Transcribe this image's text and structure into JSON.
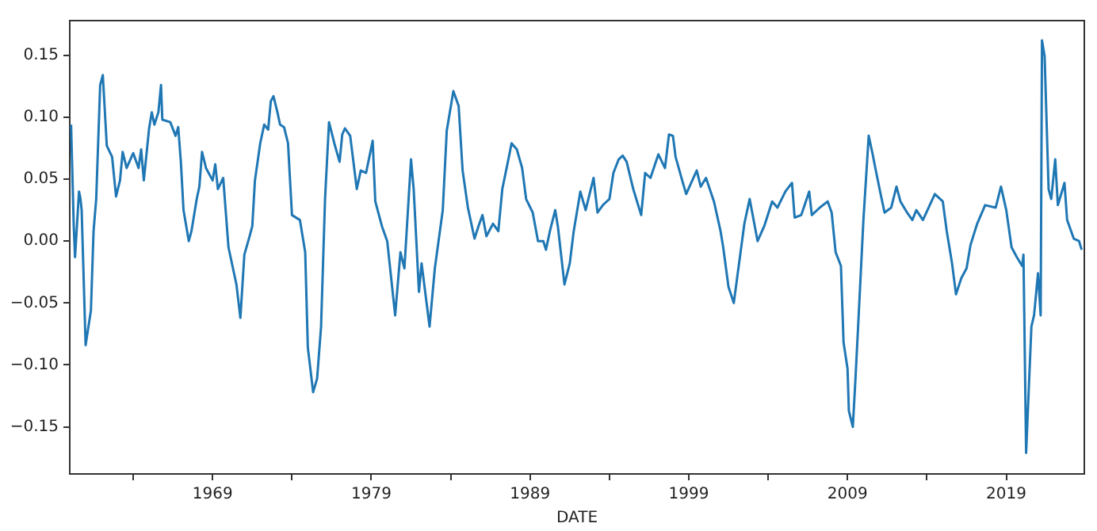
{
  "chart_data": {
    "type": "line",
    "xlabel": "DATE",
    "xlim": [
      "1960-01",
      "2023-12"
    ],
    "xticks": [
      {
        "value": "1964",
        "label": null
      },
      "1969",
      {
        "value": "1974",
        "label": null
      },
      "1979",
      {
        "value": "1984",
        "label": null
      },
      "1989",
      {
        "value": "1994",
        "label": null
      },
      "1999",
      {
        "value": "2004",
        "label": null
      },
      "2009",
      {
        "value": "2014",
        "label": null
      },
      "2019"
    ],
    "ylim": [
      -0.188,
      0.178
    ],
    "yticks": [
      {
        "value": -0.15,
        "label": "−0.15"
      },
      {
        "value": -0.1,
        "label": "−0.10"
      },
      {
        "value": -0.05,
        "label": "−0.05"
      },
      {
        "value": 0,
        "label": "0.00"
      },
      {
        "value": 0.05,
        "label": "0.05"
      },
      {
        "value": 0.1,
        "label": "0.10"
      },
      {
        "value": 0.15,
        "label": "0.15"
      }
    ],
    "grid": false,
    "legend": false,
    "marker": "none",
    "line_style": "solid",
    "x": [
      "1960-02",
      "1960-04",
      "1960-05",
      "1960-08",
      "1960-09",
      "1960-10",
      "1961-01",
      "1961-05",
      "1961-07",
      "1961-09",
      "1961-12",
      "1962-02",
      "1962-05",
      "1962-09",
      "1962-12",
      "1963-03",
      "1963-05",
      "1963-08",
      "1964-01",
      "1964-05",
      "1964-07",
      "1964-09",
      "1965-01",
      "1965-03",
      "1965-05",
      "1965-08",
      "1965-10",
      "1965-11",
      "1966-05",
      "1966-09",
      "1966-11",
      "1967-01",
      "1967-03",
      "1967-07",
      "1967-09",
      "1968-01",
      "1968-03",
      "1968-05",
      "1968-08",
      "1969-01",
      "1969-03",
      "1969-05",
      "1969-09",
      "1970-01",
      "1970-04",
      "1970-07",
      "1970-10",
      "1971-01",
      "1971-05",
      "1971-07",
      "1971-09",
      "1972-01",
      "1972-04",
      "1972-07",
      "1972-09",
      "1972-11",
      "1973-02",
      "1973-04",
      "1973-07",
      "1973-10",
      "1974-01",
      "1974-07",
      "1974-11",
      "1975-01",
      "1975-05",
      "1975-08",
      "1975-11",
      "1976-02",
      "1976-05",
      "1976-09",
      "1977-01",
      "1977-03",
      "1977-05",
      "1977-09",
      "1978-02",
      "1978-05",
      "1978-09",
      "1979-02",
      "1979-04",
      "1979-09",
      "1980-01",
      "1980-07",
      "1980-11",
      "1981-02",
      "1981-07",
      "1981-09",
      "1982-01",
      "1982-03",
      "1982-09",
      "1983-01",
      "1983-07",
      "1983-10",
      "1984-03",
      "1984-07",
      "1984-10",
      "1985-02",
      "1985-07",
      "1985-10",
      "1986-01",
      "1986-04",
      "1986-09",
      "1987-01",
      "1987-04",
      "1987-09",
      "1987-11",
      "1988-03",
      "1988-07",
      "1988-10",
      "1989-03",
      "1989-07",
      "1989-11",
      "1990-01",
      "1990-04",
      "1990-08",
      "1990-10",
      "1991-03",
      "1991-07",
      "1991-10",
      "1992-03",
      "1992-07",
      "1993-01",
      "1993-04",
      "1993-08",
      "1994-01",
      "1994-04",
      "1994-08",
      "1994-11",
      "1995-02",
      "1995-07",
      "1996-01",
      "1996-04",
      "1996-08",
      "1997-02",
      "1997-07",
      "1997-10",
      "1998-01",
      "1998-03",
      "1998-08",
      "1998-11",
      "1999-07",
      "1999-10",
      "2000-02",
      "2000-08",
      "2001-01",
      "2001-03",
      "2001-07",
      "2001-11",
      "2002-02",
      "2002-07",
      "2002-11",
      "2003-05",
      "2003-10",
      "2004-04",
      "2004-08",
      "2005-02",
      "2005-07",
      "2005-09",
      "2006-02",
      "2006-08",
      "2006-10",
      "2007-04",
      "2007-10",
      "2008-01",
      "2008-04",
      "2008-08",
      "2008-10",
      "2009-01",
      "2009-02",
      "2009-05",
      "2009-07",
      "2009-09",
      "2010-01",
      "2010-03",
      "2010-05",
      "2010-08",
      "2010-10",
      "2011-02",
      "2011-05",
      "2011-10",
      "2012-02",
      "2012-05",
      "2012-10",
      "2013-02",
      "2013-05",
      "2013-10",
      "2014-07",
      "2015-01",
      "2015-04",
      "2015-08",
      "2015-11",
      "2016-03",
      "2016-07",
      "2016-10",
      "2017-03",
      "2017-09",
      "2018-05",
      "2018-09",
      "2019-01",
      "2019-05",
      "2019-09",
      "2020-01",
      "2020-02",
      "2020-04",
      "2020-08",
      "2020-10",
      "2021-01",
      "2021-03",
      "2021-04",
      "2021-06",
      "2021-09",
      "2021-11",
      "2022-02",
      "2022-04",
      "2022-09",
      "2022-11",
      "2023-04",
      "2023-08",
      "2023-10"
    ],
    "series": [
      {
        "color": "#1f77b4",
        "values": [
          0.094,
          0.013,
          -0.013,
          0.04,
          0.035,
          0.025,
          -0.084,
          -0.056,
          0.008,
          0.034,
          0.126,
          0.134,
          0.077,
          0.068,
          0.036,
          0.049,
          0.072,
          0.059,
          0.071,
          0.059,
          0.074,
          0.049,
          0.091,
          0.104,
          0.094,
          0.104,
          0.126,
          0.098,
          0.096,
          0.085,
          0.092,
          0.064,
          0.025,
          0.0,
          0.008,
          0.034,
          0.044,
          0.072,
          0.059,
          0.049,
          0.062,
          0.042,
          0.051,
          -0.005,
          -0.02,
          -0.035,
          -0.062,
          -0.011,
          0.004,
          0.012,
          0.049,
          0.079,
          0.094,
          0.09,
          0.113,
          0.117,
          0.104,
          0.094,
          0.092,
          0.079,
          0.021,
          0.017,
          -0.009,
          -0.086,
          -0.122,
          -0.111,
          -0.069,
          0.034,
          0.096,
          0.079,
          0.064,
          0.086,
          0.091,
          0.085,
          0.042,
          0.057,
          0.055,
          0.081,
          0.032,
          0.012,
          0.0,
          -0.06,
          -0.009,
          -0.022,
          0.066,
          0.042,
          -0.041,
          -0.018,
          -0.069,
          -0.022,
          0.025,
          0.089,
          0.121,
          0.109,
          0.057,
          0.027,
          0.002,
          0.012,
          0.021,
          0.004,
          0.014,
          0.008,
          0.042,
          0.068,
          0.079,
          0.074,
          0.059,
          0.034,
          0.023,
          0.0,
          0.0,
          -0.007,
          0.008,
          0.025,
          0.012,
          -0.035,
          -0.018,
          0.008,
          0.04,
          0.025,
          0.051,
          0.023,
          0.029,
          0.034,
          0.055,
          0.066,
          0.069,
          0.064,
          0.042,
          0.021,
          0.055,
          0.051,
          0.07,
          0.059,
          0.086,
          0.085,
          0.068,
          0.049,
          0.038,
          0.057,
          0.044,
          0.051,
          0.032,
          0.008,
          -0.005,
          -0.037,
          -0.05,
          -0.026,
          0.014,
          0.034,
          0.0,
          0.012,
          0.032,
          0.027,
          0.04,
          0.047,
          0.019,
          0.021,
          0.04,
          0.021,
          0.027,
          0.032,
          0.023,
          -0.009,
          -0.02,
          -0.082,
          -0.103,
          -0.137,
          -0.15,
          -0.111,
          -0.069,
          0.017,
          0.051,
          0.085,
          0.07,
          0.059,
          0.038,
          0.023,
          0.027,
          0.044,
          0.032,
          0.023,
          0.017,
          0.025,
          0.017,
          0.038,
          0.032,
          0.008,
          -0.018,
          -0.043,
          -0.03,
          -0.022,
          -0.003,
          0.014,
          0.029,
          0.027,
          0.044,
          0.025,
          -0.005,
          -0.013,
          -0.02,
          -0.011,
          -0.171,
          -0.069,
          -0.06,
          -0.026,
          -0.06,
          0.162,
          0.149,
          0.042,
          0.034,
          0.066,
          0.029,
          0.047,
          0.017,
          0.002,
          0.0,
          -0.007
        ]
      }
    ]
  }
}
